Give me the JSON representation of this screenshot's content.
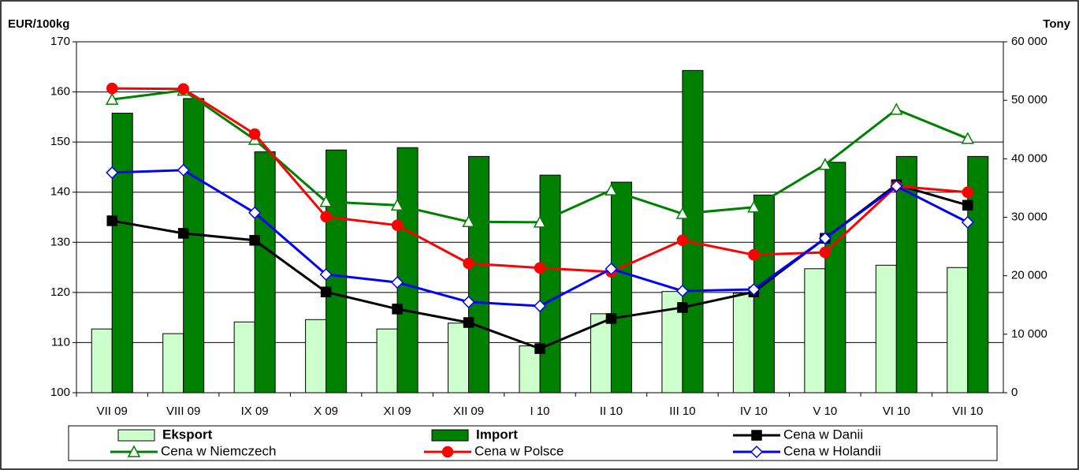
{
  "chart_data": {
    "type": "bar",
    "y_label": "EUR/100kg",
    "y2_label": "Tony",
    "categories": [
      "VII 09",
      "VIII 09",
      "IX 09",
      "X 09",
      "XI 09",
      "XII 09",
      "I 10",
      "II 10",
      "III 10",
      "IV 10",
      "V 10",
      "VI 10",
      "VII 10"
    ],
    "ylim": [
      100,
      170
    ],
    "yticks": [
      100,
      110,
      120,
      130,
      140,
      150,
      160,
      170
    ],
    "y2lim": [
      0,
      60000
    ],
    "y2ticks": [
      0,
      {
        "value": 10000,
        "label": "10 000"
      },
      {
        "value": 20000,
        "label": "20 000"
      },
      {
        "value": 30000,
        "label": "30 000"
      },
      {
        "value": 40000,
        "label": "40 000"
      },
      {
        "value": 50000,
        "label": "50 000"
      },
      {
        "value": 60000,
        "label": "60 000"
      }
    ],
    "grid": true,
    "series": [
      {
        "name": "Eksport",
        "type": "bar",
        "axis": "y2",
        "color": "#ccffcc",
        "values": [
          10900,
          10100,
          12100,
          12500,
          10900,
          11900,
          8000,
          13500,
          17300,
          17000,
          21200,
          21800,
          21400
        ]
      },
      {
        "name": "Import",
        "type": "bar",
        "axis": "y2",
        "color": "#008000",
        "values": [
          47800,
          50300,
          41200,
          41500,
          41900,
          40400,
          37200,
          36000,
          55100,
          33800,
          39400,
          40400,
          40400
        ]
      },
      {
        "name": "Cena w Danii",
        "type": "line",
        "marker": "square",
        "color": "#000000",
        "values": [
          134.3,
          131.8,
          130.4,
          120.1,
          116.7,
          114.0,
          108.8,
          114.8,
          117.0,
          120.1,
          130.8,
          141.5,
          137.4
        ]
      },
      {
        "name": "Cena w Niemczech",
        "type": "line",
        "marker": "triangle",
        "color": "#008000",
        "values": [
          158.5,
          160.3,
          150.5,
          138.1,
          137.4,
          134.1,
          134.0,
          140.4,
          135.7,
          137.0,
          145.5,
          156.5,
          150.7
        ]
      },
      {
        "name": "Cena w Polsce",
        "type": "line",
        "marker": "circle",
        "color": "#ff0000",
        "values": [
          160.7,
          160.6,
          151.6,
          135.1,
          133.4,
          125.8,
          124.9,
          124.1,
          130.4,
          127.5,
          128.0,
          141.2,
          140.0
        ]
      },
      {
        "name": "Cena w Holandii",
        "type": "line",
        "marker": "diamond",
        "color": "#0000ff",
        "values": [
          143.9,
          144.4,
          135.9,
          123.6,
          122.0,
          118.1,
          117.3,
          124.7,
          120.3,
          120.6,
          130.8,
          141.2,
          134.0
        ]
      }
    ]
  }
}
